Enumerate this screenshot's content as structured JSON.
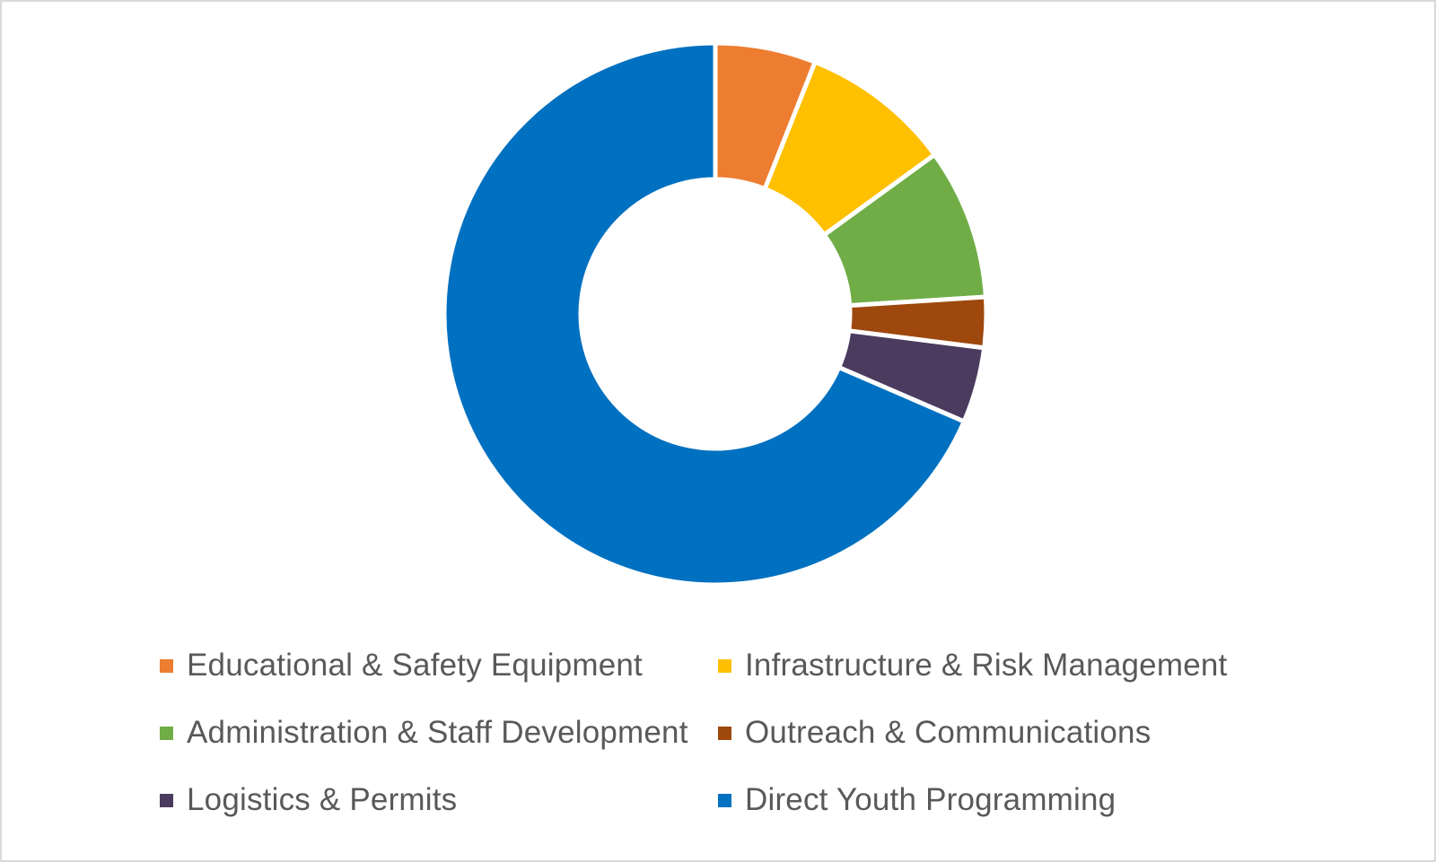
{
  "chart_data": {
    "type": "pie",
    "variant": "donut",
    "title": "",
    "legend_position": "bottom",
    "categories": [
      "Educational & Safety Equipment",
      "Infrastructure & Risk Management",
      "Administration & Staff Development",
      "Outreach & Communications",
      "Logistics & Permits",
      "Direct Youth Programming"
    ],
    "values": [
      6,
      9,
      9,
      3,
      4.5,
      68.5
    ],
    "colors": [
      "#ED7D31",
      "#FFC000",
      "#70AD47",
      "#9E480E",
      "#4B3B5F",
      "#0070C0"
    ],
    "legend": [
      {
        "label": "Educational & Safety Equipment",
        "color": "#ED7D31"
      },
      {
        "label": "Infrastructure & Risk Management",
        "color": "#FFC000"
      },
      {
        "label": "Administration & Staff Development",
        "color": "#70AD47"
      },
      {
        "label": "Outreach & Communications",
        "color": "#9E480E"
      },
      {
        "label": "Logistics & Permits",
        "color": "#4B3B5F"
      },
      {
        "label": "Direct Youth Programming",
        "color": "#0070C0"
      }
    ]
  }
}
